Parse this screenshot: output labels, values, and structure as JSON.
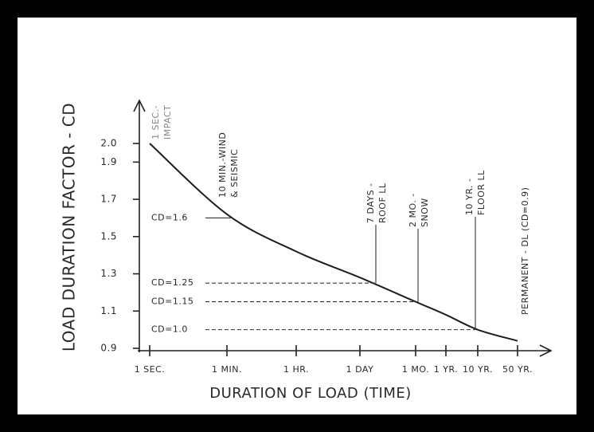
{
  "chart_data": {
    "type": "line",
    "y_label": "LOAD DURATION FACTOR - CD",
    "x_label": "DURATION OF LOAD (TIME)",
    "categories": [
      "1 SEC.",
      "1 MIN.",
      "1 HR.",
      "1 DAY",
      "1 MO.",
      "1 YR.",
      "10 YR.",
      "50 YR."
    ],
    "series": [
      {
        "color": "#1e1e1e",
        "values": [
          2.0,
          1.62,
          1.42,
          1.28,
          1.15,
          1.08,
          1.0,
          0.94
        ]
      }
    ],
    "ylim": [
      0.9,
      2.0
    ],
    "yticks": [
      {
        "value": 2.0,
        "label": "2.0"
      },
      1.9,
      1.7,
      1.5,
      1.3,
      1.1,
      0.9
    ],
    "factor_labels": [
      {
        "value": 1.6,
        "label": "CD=1.6"
      },
      {
        "value": 1.25,
        "label": "CD=1.25"
      },
      {
        "value": 1.15,
        "label": "CD=1.15"
      },
      {
        "value": 1.0,
        "label": "CD=1.0"
      }
    ],
    "load_labels": [
      {
        "lines": [
          "1 SEC.-",
          "IMPACT"
        ]
      },
      {
        "lines": [
          "10 MIN.-WIND",
          "& SEISMIC"
        ]
      },
      {
        "lines": [
          "7 DAYS -",
          "ROOF LL"
        ]
      },
      {
        "lines": [
          "2 MO. -",
          "SNOW"
        ]
      },
      {
        "lines": [
          "10 YR. -",
          "FLOOR LL"
        ]
      },
      {
        "lines": [
          "PERMANENT - DL (CD=0.9)"
        ]
      }
    ]
  }
}
